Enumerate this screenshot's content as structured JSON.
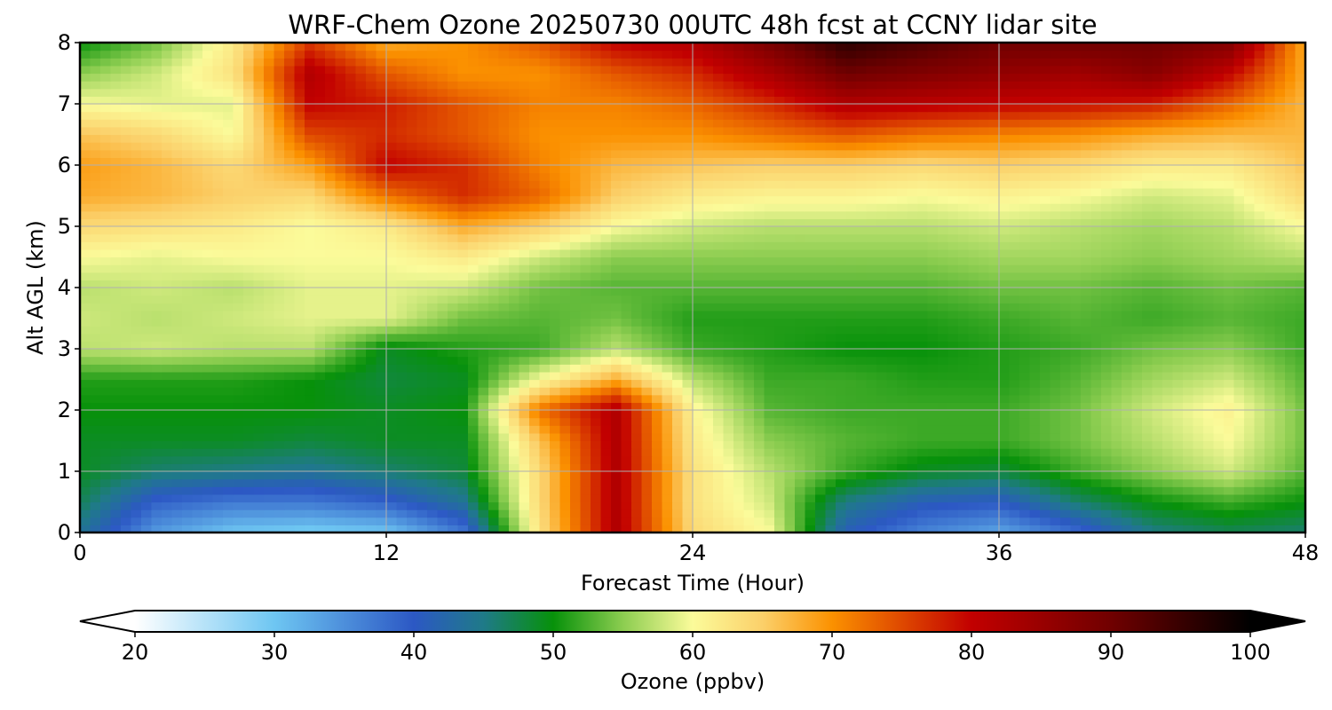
{
  "chart_data": {
    "type": "heatmap",
    "title": "WRF-Chem Ozone  20250730 00UTC 48h fcst at CCNY lidar site",
    "xlabel": "Forecast Time (Hour)",
    "ylabel": "Alt AGL (km)",
    "xlim": [
      0,
      48
    ],
    "ylim": [
      0,
      8
    ],
    "x_ticks": [
      0,
      12,
      24,
      36,
      48
    ],
    "y_ticks": [
      0,
      1,
      2,
      3,
      4,
      5,
      6,
      7,
      8
    ],
    "grid": true,
    "x": [
      0,
      3,
      6,
      9,
      12,
      15,
      18,
      21,
      24,
      27,
      30,
      33,
      36,
      39,
      42,
      45,
      48
    ],
    "y": [
      0,
      0.5,
      1,
      1.5,
      2,
      2.5,
      3,
      3.5,
      4,
      4.5,
      5,
      5.5,
      6,
      6.5,
      7,
      7.5,
      8
    ],
    "z_unit_note": "ozone mixing ratio (ppbv); rows = altitude levels in y, columns = forecast hours in x",
    "z": [
      [
        44,
        34,
        30,
        29,
        30,
        37,
        63,
        82,
        64,
        60,
        41,
        36,
        33,
        38,
        45,
        47,
        46
      ],
      [
        47,
        39,
        37,
        37,
        39,
        44,
        64,
        82,
        63,
        58,
        45,
        41,
        40,
        46,
        50,
        52,
        50
      ],
      [
        49,
        46,
        45,
        44,
        46,
        48,
        64,
        82,
        63,
        57,
        52,
        49,
        48,
        52,
        55,
        58,
        53
      ],
      [
        49,
        49,
        49,
        48,
        49,
        49,
        66,
        82,
        62,
        55,
        53,
        52,
        52,
        54,
        57,
        60,
        54
      ],
      [
        50,
        50,
        50,
        50,
        49,
        50,
        72,
        82,
        61,
        53,
        52,
        52,
        52,
        54,
        58,
        61,
        54
      ],
      [
        51,
        51,
        51,
        50,
        48,
        49,
        60,
        68,
        57,
        52,
        52,
        51,
        51,
        53,
        56,
        58,
        53
      ],
      [
        57,
        58,
        57,
        57,
        49,
        51,
        52,
        57,
        52,
        51,
        50,
        50,
        51,
        52,
        54,
        55,
        52
      ],
      [
        58,
        57,
        58,
        59,
        59,
        54,
        53,
        54,
        51,
        51,
        51,
        51,
        52,
        53,
        52,
        53,
        52
      ],
      [
        57,
        58,
        57,
        59,
        59,
        58,
        54,
        53,
        53,
        53,
        53,
        53,
        54,
        54,
        53,
        54,
        53
      ],
      [
        60,
        59,
        60,
        60,
        60,
        62,
        58,
        55,
        55,
        55,
        55,
        55,
        56,
        56,
        55,
        56,
        57
      ],
      [
        64,
        63,
        62,
        60,
        62,
        68,
        65,
        60,
        58,
        57,
        57,
        57,
        58,
        57,
        56,
        57,
        60
      ],
      [
        68,
        67,
        65,
        64,
        72,
        77,
        73,
        65,
        62,
        61,
        61,
        60,
        61,
        60,
        58,
        59,
        64
      ],
      [
        69,
        67,
        64,
        69,
        80,
        77,
        71,
        67,
        66,
        65,
        65,
        64,
        65,
        64,
        62,
        62,
        66
      ],
      [
        66,
        64,
        60,
        75,
        77,
        74,
        70,
        70,
        70,
        72,
        74,
        72,
        71,
        70,
        68,
        67,
        67
      ],
      [
        60,
        59,
        59,
        80,
        78,
        74,
        71,
        71,
        73,
        77,
        82,
        81,
        80,
        79,
        78,
        73,
        67
      ],
      [
        55,
        58,
        63,
        82,
        74,
        70,
        70,
        74,
        77,
        83,
        90,
        88,
        86,
        84,
        87,
        80,
        68
      ],
      [
        50,
        54,
        62,
        76,
        68,
        70,
        74,
        80,
        82,
        89,
        96,
        93,
        90,
        90,
        90,
        88,
        68
      ]
    ],
    "colorbar": {
      "label": "Ozone  (ppbv)",
      "min": 20,
      "max": 100,
      "ticks": [
        20,
        30,
        40,
        50,
        60,
        70,
        80,
        90,
        100
      ],
      "extend": "both",
      "stops": [
        {
          "v": 20,
          "c": "#ffffff"
        },
        {
          "v": 30,
          "c": "#6ec6f2"
        },
        {
          "v": 40,
          "c": "#2c58c4"
        },
        {
          "v": 45,
          "c": "#1f7a88"
        },
        {
          "v": 50,
          "c": "#07910a"
        },
        {
          "v": 55,
          "c": "#8ccd50"
        },
        {
          "v": 60,
          "c": "#fbfb9a"
        },
        {
          "v": 65,
          "c": "#fbd06a"
        },
        {
          "v": 70,
          "c": "#fb9100"
        },
        {
          "v": 80,
          "c": "#c20000"
        },
        {
          "v": 90,
          "c": "#700000"
        },
        {
          "v": 100,
          "c": "#000000"
        }
      ]
    }
  }
}
